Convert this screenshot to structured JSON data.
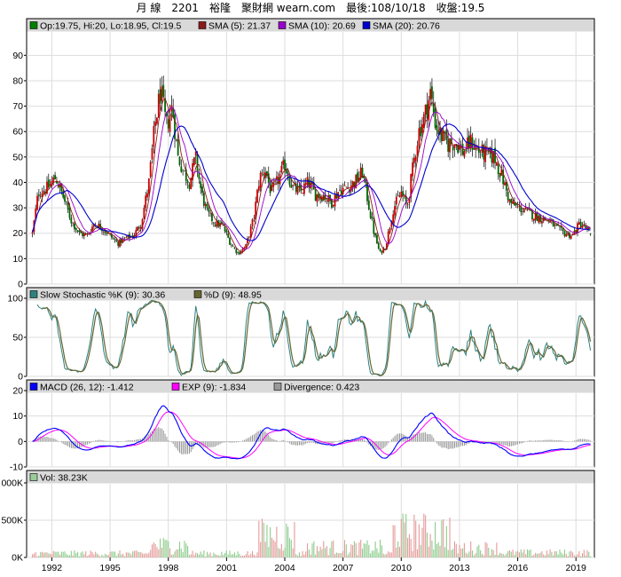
{
  "header": {
    "period": "月 線",
    "code": "2201",
    "name": "裕隆",
    "site": "聚財網 wearn.com",
    "last": "最後:108/10/18",
    "close": "收盤:19.5"
  },
  "chart_data": [
    {
      "type": "candlestick",
      "name": "price",
      "legend": [
        {
          "label": "Op:19.75, Hi:20, Lo:18.95, Cl:19.5",
          "color": "#008000"
        },
        {
          "label": "SMA (5): 21.37",
          "color": "#8b1a1a"
        },
        {
          "label": "SMA (10): 20.69",
          "color": "#9900cc"
        },
        {
          "label": "SMA (20): 20.76",
          "color": "#0000cc"
        }
      ],
      "ylim": [
        0,
        95
      ],
      "yticks": [
        0,
        10,
        20,
        30,
        40,
        50,
        60,
        70,
        80,
        90
      ],
      "price_path": [
        [
          1991.0,
          20
        ],
        [
          1991.3,
          36
        ],
        [
          1991.8,
          38
        ],
        [
          1992.2,
          42
        ],
        [
          1992.6,
          34
        ],
        [
          1993.0,
          25
        ],
        [
          1993.4,
          20
        ],
        [
          1993.8,
          19
        ],
        [
          1994.2,
          24
        ],
        [
          1994.6,
          22
        ],
        [
          1995.0,
          19
        ],
        [
          1995.4,
          16
        ],
        [
          1995.8,
          18
        ],
        [
          1996.2,
          19
        ],
        [
          1996.6,
          24
        ],
        [
          1997.0,
          40
        ],
        [
          1997.3,
          62
        ],
        [
          1997.6,
          76
        ],
        [
          1997.9,
          62
        ],
        [
          1998.2,
          70
        ],
        [
          1998.5,
          50
        ],
        [
          1998.8,
          44
        ],
        [
          1999.1,
          40
        ],
        [
          1999.4,
          50
        ],
        [
          1999.7,
          36
        ],
        [
          2000.0,
          28
        ],
        [
          2000.4,
          24
        ],
        [
          2000.8,
          23
        ],
        [
          2001.2,
          16
        ],
        [
          2001.6,
          12
        ],
        [
          2002.0,
          15
        ],
        [
          2002.4,
          26
        ],
        [
          2002.7,
          42
        ],
        [
          2003.0,
          45
        ],
        [
          2003.3,
          36
        ],
        [
          2003.6,
          40
        ],
        [
          2004.0,
          47
        ],
        [
          2004.4,
          38
        ],
        [
          2004.8,
          36
        ],
        [
          2005.2,
          40
        ],
        [
          2005.6,
          35
        ],
        [
          2006.0,
          35
        ],
        [
          2006.4,
          32
        ],
        [
          2006.8,
          37
        ],
        [
          2007.2,
          38
        ],
        [
          2007.6,
          40
        ],
        [
          2008.0,
          44
        ],
        [
          2008.3,
          32
        ],
        [
          2008.6,
          20
        ],
        [
          2008.9,
          12
        ],
        [
          2009.2,
          15
        ],
        [
          2009.6,
          30
        ],
        [
          2010.0,
          36
        ],
        [
          2010.3,
          30
        ],
        [
          2010.6,
          46
        ],
        [
          2010.9,
          60
        ],
        [
          2011.2,
          66
        ],
        [
          2011.5,
          75
        ],
        [
          2011.8,
          62
        ],
        [
          2012.1,
          58
        ],
        [
          2012.4,
          55
        ],
        [
          2012.8,
          56
        ],
        [
          2013.2,
          52
        ],
        [
          2013.6,
          56
        ],
        [
          2014.0,
          52
        ],
        [
          2014.4,
          51
        ],
        [
          2014.8,
          50
        ],
        [
          2015.2,
          42
        ],
        [
          2015.6,
          32
        ],
        [
          2016.0,
          30
        ],
        [
          2016.4,
          29
        ],
        [
          2016.8,
          27
        ],
        [
          2017.2,
          26
        ],
        [
          2017.6,
          25
        ],
        [
          2018.0,
          22
        ],
        [
          2018.4,
          20
        ],
        [
          2018.8,
          19
        ],
        [
          2019.2,
          24
        ],
        [
          2019.5,
          22
        ],
        [
          2019.8,
          19.5
        ]
      ]
    },
    {
      "type": "line",
      "name": "stochastic",
      "legend": [
        {
          "label": "Slow Stochastic %K (9): 30.36",
          "color": "#2f8080"
        },
        {
          "label": "%D (9): 48.95",
          "color": "#666633"
        }
      ],
      "ylim": [
        0,
        100
      ],
      "yticks": [
        0,
        50,
        100
      ]
    },
    {
      "type": "line",
      "name": "macd",
      "legend": [
        {
          "label": "MACD (26, 12): -1.412",
          "color": "#0000ff"
        },
        {
          "label": "EXP (9): -1.834",
          "color": "#ff00ff"
        },
        {
          "label": "Divergence: 0.423",
          "color": "#999999"
        }
      ],
      "ylim": [
        -10,
        20
      ],
      "yticks": [
        -10,
        0,
        10,
        20
      ]
    },
    {
      "type": "bar",
      "name": "volume",
      "legend": [
        {
          "label": "Vol: 38.23K",
          "color": "#99cc99"
        }
      ],
      "ylim": [
        0,
        1000
      ],
      "ytick_labels": [
        "0K",
        "500K",
        "000K"
      ],
      "yticks": [
        0,
        500,
        1000
      ]
    }
  ],
  "xaxis": {
    "range": [
      1990.7,
      2019.95
    ],
    "ticks": [
      "1992",
      "1995",
      "1998",
      "2001",
      "2004",
      "2007",
      "2010",
      "2013",
      "2016",
      "2019"
    ],
    "tick_values": [
      1992,
      1995,
      1998,
      2001,
      2004,
      2007,
      2010,
      2013,
      2016,
      2019
    ]
  }
}
